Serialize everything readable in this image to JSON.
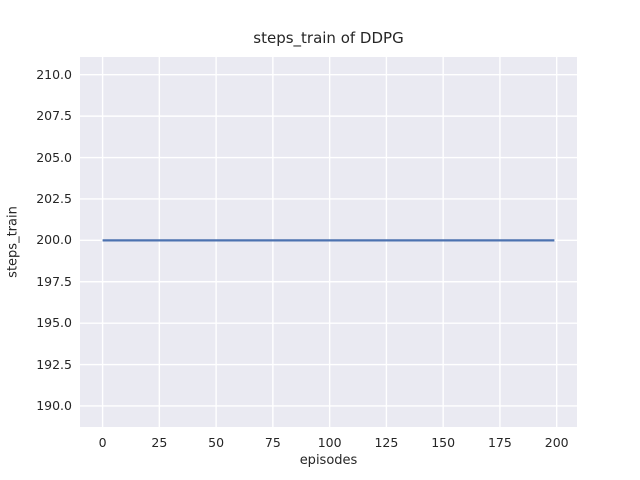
{
  "chart_data": {
    "type": "line",
    "title": "steps_train of DDPG",
    "xlabel": "episodes",
    "ylabel": "steps_train",
    "xlim": [
      -9.95,
      208.95
    ],
    "ylim": [
      188.73,
      211.07
    ],
    "xticks": {
      "values": [
        0,
        25,
        50,
        75,
        100,
        125,
        150,
        175,
        200
      ],
      "labels": [
        "0",
        "25",
        "50",
        "75",
        "100",
        "125",
        "150",
        "175",
        "200"
      ]
    },
    "yticks": {
      "values": [
        190.0,
        192.5,
        195.0,
        197.5,
        200.0,
        202.5,
        205.0,
        207.5,
        210.0
      ],
      "labels": [
        "190.0",
        "192.5",
        "195.0",
        "197.5",
        "200.0",
        "202.5",
        "205.0",
        "207.5",
        "210.0"
      ]
    },
    "grid": true,
    "legend": "none",
    "background_color": "#eaeaf2",
    "grid_color": "#ffffff",
    "text_color": "#262626",
    "series": [
      {
        "name": "steps_train",
        "color": "#4c72b0",
        "x": [
          0,
          199
        ],
        "y": [
          200,
          200
        ]
      }
    ]
  }
}
